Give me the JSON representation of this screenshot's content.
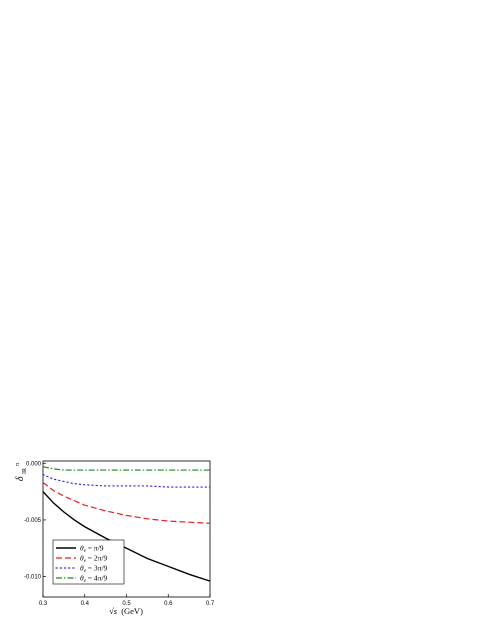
{
  "chart_data": {
    "type": "line",
    "xlabel_symbol": "√s",
    "xlabel_unit": "(GeV)",
    "ylabel_main": "δ",
    "ylabel_sub": "IR",
    "ylabel_sup": "π",
    "xlim": [
      0.3,
      0.7
    ],
    "ylim": [
      -0.0118,
      0.0002
    ],
    "xticks": [
      0.3,
      0.4,
      0.5,
      0.6,
      0.7
    ],
    "xtick_labels": [
      "0.3",
      "0.4",
      "0.5",
      "0.6",
      "0.7"
    ],
    "yticks": [
      0.0,
      -0.005,
      -0.01
    ],
    "ytick_labels": [
      "0.000",
      "-0.005",
      "-0.010"
    ],
    "legend_position": "bottom-left",
    "series": [
      {
        "name": "θe = π/9",
        "color": "#000000",
        "dash": "solid",
        "x": [
          0.3,
          0.325,
          0.35,
          0.375,
          0.4,
          0.45,
          0.5,
          0.55,
          0.6,
          0.65,
          0.7
        ],
        "y": [
          -0.0025,
          -0.0035,
          -0.0043,
          -0.005,
          -0.0056,
          -0.0066,
          -0.0075,
          -0.0084,
          -0.0091,
          -0.0098,
          -0.0104
        ]
      },
      {
        "name": "θe = 2π/9",
        "color": "#e8201c",
        "dash": "dash",
        "x": [
          0.3,
          0.325,
          0.35,
          0.375,
          0.4,
          0.45,
          0.5,
          0.55,
          0.6,
          0.65,
          0.7
        ],
        "y": [
          -0.0017,
          -0.0024,
          -0.0029,
          -0.0033,
          -0.0037,
          -0.0042,
          -0.0046,
          -0.0049,
          -0.0051,
          -0.0052,
          -0.0053
        ]
      },
      {
        "name": "θe = 3π/9",
        "color": "#2a2ad8",
        "dash": "dot",
        "x": [
          0.3,
          0.325,
          0.35,
          0.375,
          0.4,
          0.45,
          0.5,
          0.55,
          0.6,
          0.65,
          0.7
        ],
        "y": [
          -0.001,
          -0.0014,
          -0.0016,
          -0.0018,
          -0.0019,
          -0.002,
          -0.002,
          -0.002,
          -0.0021,
          -0.0021,
          -0.0021
        ]
      },
      {
        "name": "θe = 4π/9",
        "color": "#1a8a1a",
        "dash": "dashdot",
        "x": [
          0.3,
          0.325,
          0.35,
          0.4,
          0.5,
          0.6,
          0.7
        ],
        "y": [
          -0.0003,
          -0.0005,
          -0.0006,
          -0.0006,
          -0.0006,
          -0.0006,
          -0.0006
        ]
      }
    ],
    "legend_labels": [
      {
        "theta": "θ",
        "sub": "e",
        "rest": " = π/9"
      },
      {
        "theta": "θ",
        "sub": "e",
        "rest": " = 2π/9"
      },
      {
        "theta": "θ",
        "sub": "e",
        "rest": " = 3π/9"
      },
      {
        "theta": "θ",
        "sub": "e",
        "rest": " = 4π/9"
      }
    ]
  }
}
